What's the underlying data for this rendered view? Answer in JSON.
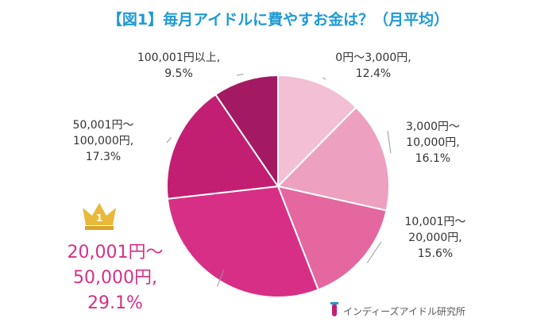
{
  "chart_data": {
    "type": "pie",
    "title": "【図1】毎月アイドルに費やすお金は？（月平均）",
    "categories": [
      "0円〜3,000円,",
      "3,000円〜\n10,000円,",
      "10,001円〜\n20,000円,",
      "20,001円〜\n50,000円,",
      "50,001円〜\n100,000円,",
      "100,001円以上,"
    ],
    "values": [
      12.4,
      16.1,
      15.6,
      29.1,
      17.3,
      9.5
    ],
    "value_labels": [
      "12.4%",
      "16.1%",
      "15.6%",
      "29.1%",
      "17.3%",
      "9.5%"
    ],
    "colors": [
      "#f2bfd4",
      "#eda0c0",
      "#e4679f",
      "#d72f85",
      "#c21f73",
      "#a31a63"
    ],
    "source": "インディーズアイドル研究所"
  }
}
